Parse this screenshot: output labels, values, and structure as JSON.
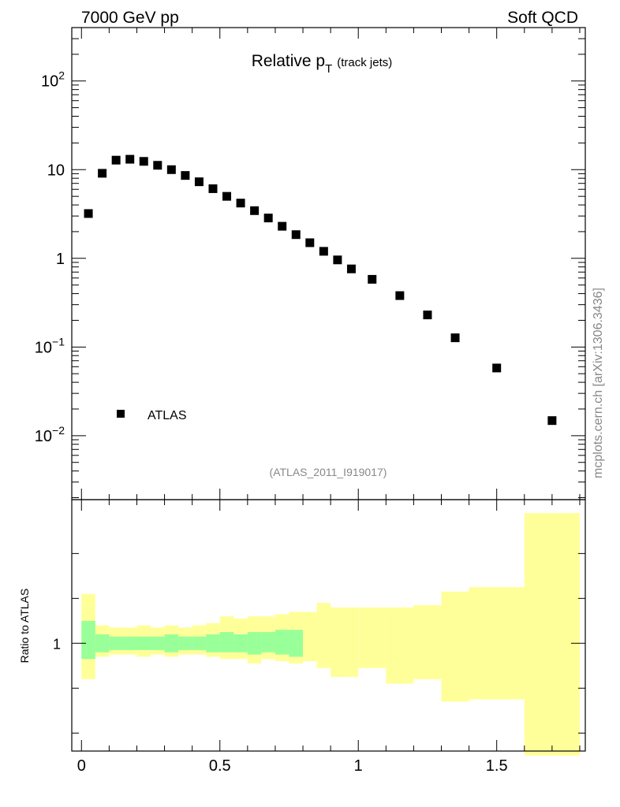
{
  "header": {
    "left": "7000 GeV pp",
    "right": "Soft QCD",
    "side": "mcplots.cern.ch [arXiv:1306.3436]"
  },
  "chart_data": [
    {
      "type": "scatter",
      "title": "Relative p",
      "title_sub": "T",
      "title_suffix": "(track jets)",
      "analysis_label": "(ATLAS_2011_I919017)",
      "yscale": "log",
      "xlim": [
        -0.035,
        1.82
      ],
      "ylim": [
        0.0019,
        400
      ],
      "yticks": [
        {
          "value": 100,
          "base": "10",
          "exp": "2"
        },
        {
          "value": 10,
          "base": "10",
          "exp": ""
        },
        {
          "value": 1,
          "base": "1",
          "exp": ""
        },
        {
          "value": 0.1,
          "base": "10",
          "exp": "−1"
        },
        {
          "value": 0.01,
          "base": "10",
          "exp": "−2"
        }
      ],
      "legend": {
        "position": "bottom-left",
        "label": "ATLAS"
      },
      "series": [
        {
          "name": "ATLAS",
          "color": "#000000",
          "x": [
            0.025,
            0.075,
            0.125,
            0.175,
            0.225,
            0.275,
            0.325,
            0.375,
            0.425,
            0.475,
            0.525,
            0.575,
            0.625,
            0.675,
            0.725,
            0.775,
            0.825,
            0.875,
            0.925,
            0.975,
            1.05,
            1.15,
            1.25,
            1.35,
            1.5,
            1.7
          ],
          "y": [
            3.2,
            9.1,
            12.8,
            13.1,
            12.4,
            11.2,
            10.0,
            8.6,
            7.3,
            6.1,
            5.0,
            4.2,
            3.45,
            2.85,
            2.3,
            1.85,
            1.5,
            1.2,
            0.96,
            0.76,
            0.58,
            0.38,
            0.23,
            0.127,
            0.058,
            0.0148
          ]
        }
      ]
    },
    {
      "type": "area",
      "ylabel": "Ratio to ATLAS",
      "xlim": [
        -0.035,
        1.82
      ],
      "ylim": [
        0.76,
        1.32
      ],
      "yticks": [
        {
          "value": 1,
          "label": "1"
        }
      ],
      "xticks": [
        {
          "value": 0,
          "label": "0"
        },
        {
          "value": 0.5,
          "label": "0.5"
        },
        {
          "value": 1,
          "label": "1"
        },
        {
          "value": 1.5,
          "label": "1.5"
        }
      ],
      "bands": [
        {
          "color": "#ffff99",
          "bins": [
            [
              0.0,
              0.05,
              0.92,
              1.11
            ],
            [
              0.05,
              0.1,
              0.97,
              1.04
            ],
            [
              0.1,
              0.15,
              0.975,
              1.035
            ],
            [
              0.15,
              0.2,
              0.975,
              1.035
            ],
            [
              0.2,
              0.25,
              0.97,
              1.04
            ],
            [
              0.25,
              0.3,
              0.975,
              1.035
            ],
            [
              0.3,
              0.35,
              0.97,
              1.04
            ],
            [
              0.35,
              0.4,
              0.975,
              1.035
            ],
            [
              0.4,
              0.45,
              0.975,
              1.04
            ],
            [
              0.45,
              0.5,
              0.97,
              1.045
            ],
            [
              0.5,
              0.55,
              0.965,
              1.06
            ],
            [
              0.55,
              0.6,
              0.965,
              1.055
            ],
            [
              0.6,
              0.65,
              0.955,
              1.06
            ],
            [
              0.65,
              0.7,
              0.965,
              1.06
            ],
            [
              0.7,
              0.75,
              0.96,
              1.065
            ],
            [
              0.75,
              0.8,
              0.955,
              1.07
            ],
            [
              0.8,
              0.85,
              0.96,
              1.07
            ],
            [
              0.85,
              0.9,
              0.945,
              1.09
            ],
            [
              0.9,
              0.95,
              0.925,
              1.08
            ],
            [
              0.95,
              1.0,
              0.925,
              1.08
            ],
            [
              1.0,
              1.1,
              0.945,
              1.08
            ],
            [
              1.1,
              1.2,
              0.91,
              1.08
            ],
            [
              1.2,
              1.3,
              0.92,
              1.085
            ],
            [
              1.3,
              1.4,
              0.87,
              1.115
            ],
            [
              1.4,
              1.6,
              0.875,
              1.125
            ],
            [
              1.6,
              1.8,
              0.75,
              1.29
            ]
          ]
        },
        {
          "color": "#99ff99",
          "bins": [
            [
              0.0,
              0.05,
              0.965,
              1.05
            ],
            [
              0.05,
              0.1,
              0.98,
              1.02
            ],
            [
              0.1,
              0.15,
              0.985,
              1.015
            ],
            [
              0.15,
              0.2,
              0.985,
              1.015
            ],
            [
              0.2,
              0.25,
              0.985,
              1.015
            ],
            [
              0.25,
              0.3,
              0.985,
              1.015
            ],
            [
              0.3,
              0.35,
              0.98,
              1.02
            ],
            [
              0.35,
              0.4,
              0.985,
              1.015
            ],
            [
              0.4,
              0.45,
              0.985,
              1.015
            ],
            [
              0.45,
              0.5,
              0.98,
              1.02
            ],
            [
              0.5,
              0.55,
              0.98,
              1.025
            ],
            [
              0.55,
              0.6,
              0.98,
              1.02
            ],
            [
              0.6,
              0.65,
              0.975,
              1.025
            ],
            [
              0.65,
              0.7,
              0.98,
              1.025
            ],
            [
              0.7,
              0.75,
              0.975,
              1.03
            ],
            [
              0.75,
              0.8,
              0.97,
              1.03
            ]
          ]
        }
      ]
    }
  ]
}
